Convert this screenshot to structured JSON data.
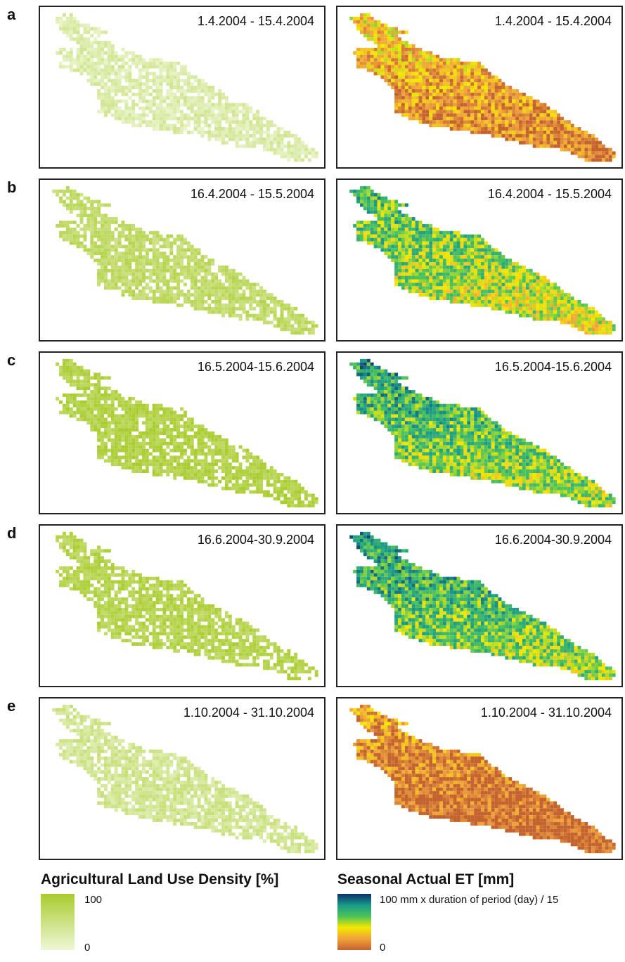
{
  "rows": [
    {
      "letter": "a",
      "left_period": "1.4.2004 - 15.4.2004",
      "right_period": "1.4.2004 - 15.4.2004",
      "density_level": 0.25,
      "et_level": 0.3
    },
    {
      "letter": "b",
      "left_period": "16.4.2004 - 15.5.2004",
      "right_period": "16.4.2004 - 15.5.2004",
      "density_level": 0.65,
      "et_level": 0.62
    },
    {
      "letter": "c",
      "left_period": "16.5.2004-15.6.2004",
      "right_period": "16.5.2004-15.6.2004",
      "density_level": 0.85,
      "et_level": 0.7
    },
    {
      "letter": "d",
      "left_period": "16.6.2004-30.9.2004",
      "right_period": "16.6.2004-30.9.2004",
      "density_level": 0.8,
      "et_level": 0.72
    },
    {
      "letter": "e",
      "left_period": "1.10.2004 - 31.10.2004",
      "right_period": "1.10.2004 - 31.10.2004",
      "density_level": 0.4,
      "et_level": 0.18
    }
  ],
  "legend_density": {
    "title": "Agricultural Land Use Density [%]",
    "max_label": "100",
    "min_label": "0",
    "color_max": "#a9cc2e",
    "color_min": "#eef7d6"
  },
  "legend_et": {
    "title": "Seasonal Actual ET [mm]",
    "max_label": "100 mm x duration of period (day) / 15",
    "min_label": "0",
    "colors": [
      "#0b2f6b",
      "#1a9a8a",
      "#4cc35a",
      "#f5e800",
      "#f0a23a",
      "#c4622e"
    ]
  }
}
